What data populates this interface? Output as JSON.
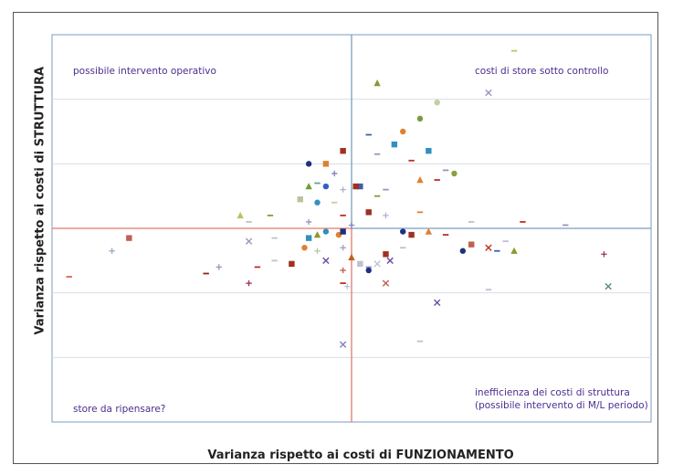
{
  "chart_data": {
    "type": "scatter",
    "xlabel": "Varianza rispetto ai costi di FUNZIONAMENTO",
    "ylabel": "Varianza rispetto ai costi di STRUTTURA",
    "xlim": [
      -7,
      7
    ],
    "ylim": [
      -6,
      6
    ],
    "grid": "horizontal",
    "annotations": {
      "top_left": "possibile intervento operativo",
      "top_right": "costi di store sotto controllo",
      "bottom_left": "store da ripensare?",
      "bottom_right": "inefficienza dei costi di struttura (possibile intervento di M/L periodo)"
    },
    "points": [
      {
        "x": 3.8,
        "y": 5.5,
        "shape": "dash",
        "color": "#c8c060"
      },
      {
        "x": 0.6,
        "y": 4.5,
        "shape": "triangle",
        "color": "#8a9a30"
      },
      {
        "x": 2.0,
        "y": 3.9,
        "shape": "circle",
        "color": "#c0d0a0"
      },
      {
        "x": 3.2,
        "y": 4.2,
        "shape": "x",
        "color": "#a090c0"
      },
      {
        "x": 1.6,
        "y": 3.4,
        "shape": "circle",
        "color": "#7a9a40"
      },
      {
        "x": 1.2,
        "y": 3.0,
        "shape": "circle",
        "color": "#e08030"
      },
      {
        "x": 1.0,
        "y": 2.6,
        "shape": "square",
        "color": "#3090c0"
      },
      {
        "x": 1.8,
        "y": 2.4,
        "shape": "square",
        "color": "#3090c0"
      },
      {
        "x": 0.4,
        "y": 2.9,
        "shape": "dash",
        "color": "#4060a0"
      },
      {
        "x": 0.6,
        "y": 2.3,
        "shape": "dash",
        "color": "#a090c0"
      },
      {
        "x": 1.4,
        "y": 2.1,
        "shape": "dash",
        "color": "#c03020"
      },
      {
        "x": -0.2,
        "y": 2.4,
        "shape": "square",
        "color": "#a03020"
      },
      {
        "x": -0.6,
        "y": 2.0,
        "shape": "square",
        "color": "#e08030"
      },
      {
        "x": -1.0,
        "y": 2.0,
        "shape": "circle",
        "color": "#203080"
      },
      {
        "x": 2.2,
        "y": 1.8,
        "shape": "dash",
        "color": "#a090c0"
      },
      {
        "x": 2.4,
        "y": 1.7,
        "shape": "circle",
        "color": "#8aa040"
      },
      {
        "x": -0.4,
        "y": 1.7,
        "shape": "plus",
        "color": "#8080c0"
      },
      {
        "x": -0.8,
        "y": 1.4,
        "shape": "dash",
        "color": "#60a0a0"
      },
      {
        "x": -1.0,
        "y": 1.3,
        "shape": "triangle",
        "color": "#6aa030"
      },
      {
        "x": -0.6,
        "y": 1.3,
        "shape": "circle",
        "color": "#3060c0"
      },
      {
        "x": 0.2,
        "y": 1.3,
        "shape": "square",
        "color": "#4060a0"
      },
      {
        "x": 0.8,
        "y": 1.2,
        "shape": "dash",
        "color": "#a090c0"
      },
      {
        "x": 1.6,
        "y": 1.5,
        "shape": "triangle",
        "color": "#e08030"
      },
      {
        "x": 2.0,
        "y": 1.5,
        "shape": "dash",
        "color": "#c03020"
      },
      {
        "x": -0.2,
        "y": 1.2,
        "shape": "plus",
        "color": "#b0b0d0"
      },
      {
        "x": 0.1,
        "y": 1.3,
        "shape": "square",
        "color": "#a03020"
      },
      {
        "x": 0.6,
        "y": 1.0,
        "shape": "dash",
        "color": "#8a9a30"
      },
      {
        "x": -1.2,
        "y": 0.9,
        "shape": "square",
        "color": "#c0c0a0"
      },
      {
        "x": -0.8,
        "y": 0.8,
        "shape": "circle",
        "color": "#3090c0"
      },
      {
        "x": -0.4,
        "y": 0.8,
        "shape": "dash",
        "color": "#c0d0a0"
      },
      {
        "x": 0.4,
        "y": 0.5,
        "shape": "square",
        "color": "#a03020"
      },
      {
        "x": 0.8,
        "y": 0.4,
        "shape": "plus",
        "color": "#b0b0d0"
      },
      {
        "x": 1.6,
        "y": 0.5,
        "shape": "dash",
        "color": "#e08030"
      },
      {
        "x": -0.2,
        "y": 0.4,
        "shape": "dash",
        "color": "#c03020"
      },
      {
        "x": -1.9,
        "y": 0.4,
        "shape": "dash",
        "color": "#8a9a30"
      },
      {
        "x": -2.6,
        "y": 0.4,
        "shape": "triangle",
        "color": "#c0c060"
      },
      {
        "x": -2.4,
        "y": 0.2,
        "shape": "dash",
        "color": "#c0c0d0"
      },
      {
        "x": -1.0,
        "y": 0.2,
        "shape": "plus",
        "color": "#a090c0"
      },
      {
        "x": 0.0,
        "y": 0.1,
        "shape": "plus",
        "color": "#8080c0"
      },
      {
        "x": 4.0,
        "y": 0.2,
        "shape": "dash",
        "color": "#c03020"
      },
      {
        "x": 2.8,
        "y": 0.2,
        "shape": "dash",
        "color": "#c0c0d0"
      },
      {
        "x": 5.0,
        "y": 0.1,
        "shape": "dash",
        "color": "#a090c0"
      },
      {
        "x": 1.2,
        "y": -0.1,
        "shape": "circle",
        "color": "#203080"
      },
      {
        "x": 1.4,
        "y": -0.2,
        "shape": "square",
        "color": "#a03020"
      },
      {
        "x": 1.8,
        "y": -0.1,
        "shape": "triangle",
        "color": "#e08030"
      },
      {
        "x": 2.2,
        "y": -0.2,
        "shape": "dash",
        "color": "#c03020"
      },
      {
        "x": -0.6,
        "y": -0.1,
        "shape": "circle",
        "color": "#3090c0"
      },
      {
        "x": -0.3,
        "y": -0.2,
        "shape": "circle",
        "color": "#e08030"
      },
      {
        "x": -0.2,
        "y": -0.1,
        "shape": "square",
        "color": "#203080"
      },
      {
        "x": -0.8,
        "y": -0.2,
        "shape": "triangle",
        "color": "#8a9a30"
      },
      {
        "x": -1.0,
        "y": -0.3,
        "shape": "square",
        "color": "#3090c0"
      },
      {
        "x": -1.8,
        "y": -0.3,
        "shape": "dash",
        "color": "#c0c0d0"
      },
      {
        "x": -2.4,
        "y": -0.4,
        "shape": "x",
        "color": "#a090c0"
      },
      {
        "x": -5.2,
        "y": -0.3,
        "shape": "square",
        "color": "#c06050"
      },
      {
        "x": -5.6,
        "y": -0.7,
        "shape": "plus",
        "color": "#a0a0c0"
      },
      {
        "x": 2.8,
        "y": -0.5,
        "shape": "square",
        "color": "#c06050"
      },
      {
        "x": 2.6,
        "y": -0.7,
        "shape": "circle",
        "color": "#203080"
      },
      {
        "x": 3.2,
        "y": -0.6,
        "shape": "x",
        "color": "#c03020"
      },
      {
        "x": 3.6,
        "y": -0.4,
        "shape": "dash",
        "color": "#c0c0d0"
      },
      {
        "x": 3.8,
        "y": -0.7,
        "shape": "triangle",
        "color": "#8a9a30"
      },
      {
        "x": 3.4,
        "y": -0.7,
        "shape": "dash",
        "color": "#3060c0"
      },
      {
        "x": 5.9,
        "y": -0.8,
        "shape": "plus",
        "color": "#a03060"
      },
      {
        "x": 1.2,
        "y": -0.6,
        "shape": "dash",
        "color": "#c0c0d0"
      },
      {
        "x": 0.8,
        "y": -0.8,
        "shape": "square",
        "color": "#a03020"
      },
      {
        "x": 0.0,
        "y": -0.9,
        "shape": "triangle",
        "color": "#c06020"
      },
      {
        "x": -0.2,
        "y": -0.6,
        "shape": "plus",
        "color": "#a0a0c0"
      },
      {
        "x": -0.8,
        "y": -0.7,
        "shape": "plus",
        "color": "#c0c0a0"
      },
      {
        "x": -0.6,
        "y": -1.0,
        "shape": "x",
        "color": "#6a4aa0"
      },
      {
        "x": -1.1,
        "y": -0.6,
        "shape": "circle",
        "color": "#e08030"
      },
      {
        "x": -1.4,
        "y": -1.1,
        "shape": "square",
        "color": "#a03020"
      },
      {
        "x": -1.8,
        "y": -1.0,
        "shape": "dash",
        "color": "#c0c0d0"
      },
      {
        "x": -2.2,
        "y": -1.2,
        "shape": "dash",
        "color": "#c03020"
      },
      {
        "x": 0.2,
        "y": -1.1,
        "shape": "square",
        "color": "#c0c0d0"
      },
      {
        "x": 0.4,
        "y": -1.2,
        "shape": "dash",
        "color": "#a090c0"
      },
      {
        "x": 0.6,
        "y": -1.1,
        "shape": "x",
        "color": "#c0c0d0"
      },
      {
        "x": 0.9,
        "y": -1.0,
        "shape": "x",
        "color": "#6a4aa0"
      },
      {
        "x": -0.2,
        "y": -1.3,
        "shape": "plus",
        "color": "#c06050"
      },
      {
        "x": 0.4,
        "y": -1.3,
        "shape": "circle",
        "color": "#203080"
      },
      {
        "x": -3.1,
        "y": -1.2,
        "shape": "plus",
        "color": "#a090c0"
      },
      {
        "x": -3.4,
        "y": -1.4,
        "shape": "dash",
        "color": "#902020"
      },
      {
        "x": -6.6,
        "y": -1.5,
        "shape": "dash",
        "color": "#e06050"
      },
      {
        "x": -2.4,
        "y": -1.7,
        "shape": "plus",
        "color": "#a03060"
      },
      {
        "x": -0.2,
        "y": -1.7,
        "shape": "dash",
        "color": "#c03020"
      },
      {
        "x": -0.1,
        "y": -1.8,
        "shape": "plus",
        "color": "#c0c0d0"
      },
      {
        "x": 0.8,
        "y": -1.7,
        "shape": "x",
        "color": "#c06050"
      },
      {
        "x": 3.2,
        "y": -1.9,
        "shape": "dash",
        "color": "#c0c0d0"
      },
      {
        "x": 6.0,
        "y": -1.8,
        "shape": "x",
        "color": "#5a8a80"
      },
      {
        "x": 2.0,
        "y": -2.3,
        "shape": "x",
        "color": "#6a4aa0"
      },
      {
        "x": -0.2,
        "y": -3.6,
        "shape": "x",
        "color": "#8080c0"
      },
      {
        "x": 1.6,
        "y": -3.5,
        "shape": "dash",
        "color": "#c0c0d0"
      }
    ]
  }
}
